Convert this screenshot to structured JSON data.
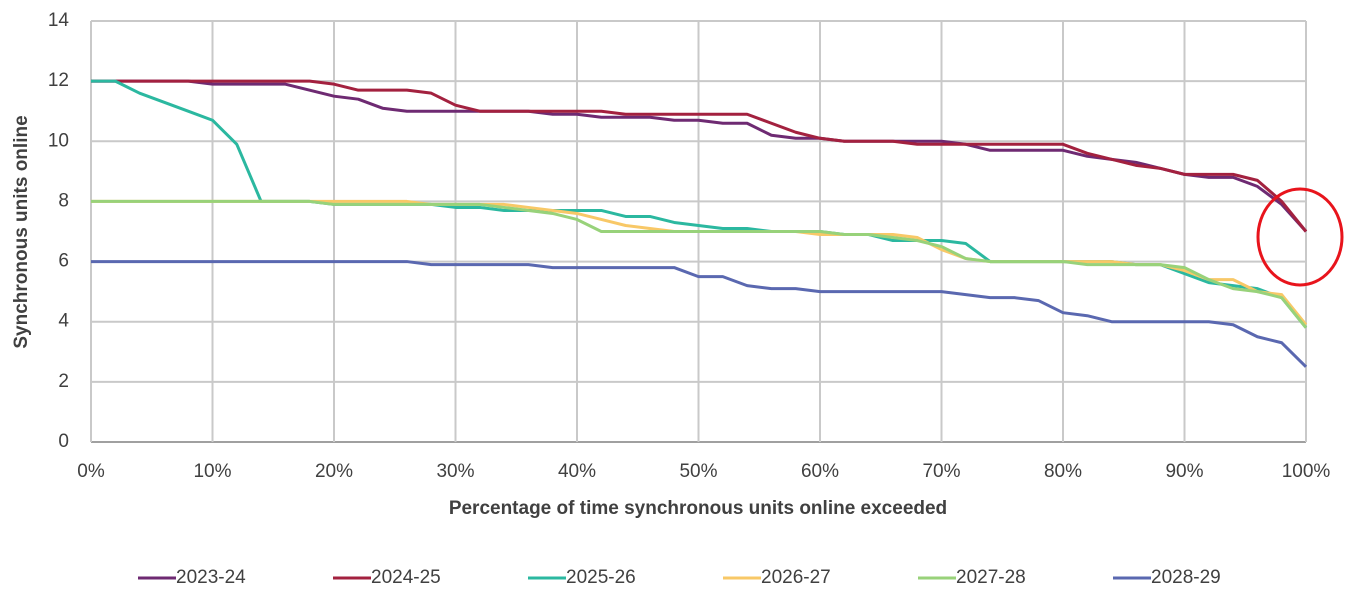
{
  "chart_data": {
    "type": "line",
    "x_label": "Percentage of time synchronous units online exceeded",
    "y_label": "Synchronous units online",
    "x": [
      0,
      2,
      4,
      6,
      8,
      10,
      12,
      14,
      16,
      18,
      20,
      22,
      24,
      26,
      28,
      30,
      32,
      34,
      36,
      38,
      40,
      42,
      44,
      46,
      48,
      50,
      52,
      54,
      56,
      58,
      60,
      62,
      64,
      66,
      68,
      70,
      72,
      74,
      76,
      78,
      80,
      82,
      84,
      86,
      88,
      90,
      92,
      94,
      96,
      98,
      100
    ],
    "series": [
      {
        "name": "2023-24",
        "color": "#6e2a72",
        "values": [
          12,
          12,
          12,
          12,
          12,
          11.9,
          11.9,
          11.9,
          11.9,
          11.7,
          11.5,
          11.4,
          11.1,
          11,
          11,
          11,
          11,
          11,
          11,
          10.9,
          10.9,
          10.8,
          10.8,
          10.8,
          10.7,
          10.7,
          10.6,
          10.6,
          10.2,
          10.1,
          10.1,
          10,
          10,
          10,
          10,
          10,
          9.9,
          9.7,
          9.7,
          9.7,
          9.7,
          9.5,
          9.4,
          9.3,
          9.1,
          8.9,
          8.8,
          8.8,
          8.5,
          7.9,
          7
        ]
      },
      {
        "name": "2024-25",
        "color": "#a3213f",
        "values": [
          12,
          12,
          12,
          12,
          12,
          12,
          12,
          12,
          12,
          12,
          11.9,
          11.7,
          11.7,
          11.7,
          11.6,
          11.2,
          11,
          11,
          11,
          11,
          11,
          11,
          10.9,
          10.9,
          10.9,
          10.9,
          10.9,
          10.9,
          10.6,
          10.3,
          10.1,
          10,
          10,
          10,
          9.9,
          9.9,
          9.9,
          9.9,
          9.9,
          9.9,
          9.9,
          9.6,
          9.4,
          9.2,
          9.1,
          8.9,
          8.9,
          8.9,
          8.7,
          8,
          7
        ]
      },
      {
        "name": "2025-26",
        "color": "#2bb8a0",
        "values": [
          12,
          12,
          11.6,
          11.3,
          11,
          10.7,
          9.9,
          8,
          8,
          8,
          7.9,
          7.9,
          7.9,
          7.9,
          7.9,
          7.8,
          7.8,
          7.7,
          7.7,
          7.7,
          7.7,
          7.7,
          7.5,
          7.5,
          7.3,
          7.2,
          7.1,
          7.1,
          7,
          7,
          7,
          6.9,
          6.9,
          6.7,
          6.7,
          6.7,
          6.6,
          6,
          6,
          6,
          6,
          6,
          6,
          5.9,
          5.9,
          5.6,
          5.3,
          5.2,
          5.1,
          4.8,
          3.8
        ]
      },
      {
        "name": "2026-27",
        "color": "#f8c867",
        "values": [
          8,
          8,
          8,
          8,
          8,
          8,
          8,
          8,
          8,
          8,
          8,
          8,
          8,
          8,
          7.9,
          7.9,
          7.9,
          7.9,
          7.8,
          7.7,
          7.6,
          7.4,
          7.2,
          7.1,
          7,
          7,
          7,
          7,
          7,
          7,
          6.9,
          6.9,
          6.9,
          6.9,
          6.8,
          6.4,
          6.1,
          6,
          6,
          6,
          6,
          6,
          6,
          5.9,
          5.9,
          5.7,
          5.4,
          5.4,
          5,
          4.9,
          3.9
        ]
      },
      {
        "name": "2027-28",
        "color": "#98d27a",
        "values": [
          8,
          8,
          8,
          8,
          8,
          8,
          8,
          8,
          8,
          8,
          7.9,
          7.9,
          7.9,
          7.9,
          7.9,
          7.9,
          7.9,
          7.8,
          7.7,
          7.6,
          7.4,
          7,
          7,
          7,
          7,
          7,
          7,
          7,
          7,
          7,
          7,
          6.9,
          6.9,
          6.8,
          6.7,
          6.5,
          6.1,
          6,
          6,
          6,
          6,
          5.9,
          5.9,
          5.9,
          5.9,
          5.8,
          5.4,
          5.1,
          5,
          4.8,
          3.8
        ]
      },
      {
        "name": "2028-29",
        "color": "#5a68b0",
        "values": [
          6,
          6,
          6,
          6,
          6,
          6,
          6,
          6,
          6,
          6,
          6,
          6,
          6,
          6,
          5.9,
          5.9,
          5.9,
          5.9,
          5.9,
          5.8,
          5.8,
          5.8,
          5.8,
          5.8,
          5.8,
          5.5,
          5.5,
          5.2,
          5.1,
          5.1,
          5,
          5,
          5,
          5,
          5,
          5,
          4.9,
          4.8,
          4.8,
          4.7,
          4.3,
          4.2,
          4,
          4,
          4,
          4,
          4,
          3.9,
          3.5,
          3.3,
          2.5
        ]
      }
    ],
    "xlim": [
      0,
      100
    ],
    "xticks": [
      {
        "value": 0,
        "label": "0%"
      },
      {
        "value": 10,
        "label": "10%"
      },
      {
        "value": 20,
        "label": "20%"
      },
      {
        "value": 30,
        "label": "30%"
      },
      {
        "value": 40,
        "label": "40%"
      },
      {
        "value": 50,
        "label": "50%"
      },
      {
        "value": 60,
        "label": "60%"
      },
      {
        "value": 70,
        "label": "70%"
      },
      {
        "value": 80,
        "label": "80%"
      },
      {
        "value": 90,
        "label": "90%"
      },
      {
        "value": 100,
        "label": "100%"
      }
    ],
    "ylim": [
      0,
      14
    ],
    "yticks": [
      0,
      2,
      4,
      6,
      8,
      10,
      12,
      14
    ],
    "grid": true,
    "legend": "bottom"
  }
}
